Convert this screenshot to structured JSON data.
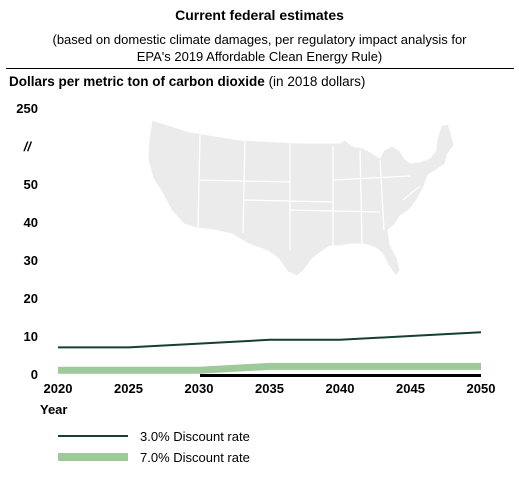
{
  "chart_data": {
    "type": "line",
    "title": "Current federal estimates",
    "subtitle_line1": "(based on domestic climate damages, per regulatory impact analysis for",
    "subtitle_line2": "EPA's 2019 Affordable Clean Energy Rule)",
    "ylabel_bold": "Dollars per metric ton of carbon dioxide",
    "ylabel_note": "(in 2018 dollars)",
    "xlabel": "Year",
    "x": [
      2020,
      2025,
      2030,
      2035,
      2040,
      2045,
      2050
    ],
    "x_tick_labels": [
      "2020",
      "2025",
      "2030",
      "2035",
      "2040",
      "2045",
      "2050"
    ],
    "y_tick_labels": [
      "0",
      "10",
      "20",
      "30",
      "40",
      "50",
      "//",
      "250"
    ],
    "y_ticks_numeric": [
      0,
      10,
      20,
      30,
      40,
      50
    ],
    "y_break_symbol": "//",
    "y_top_label": "250",
    "ylim": [
      0,
      50
    ],
    "series": [
      {
        "name": "3.0% Discount rate",
        "color": "#13412c",
        "style": "thin",
        "values": [
          7,
          7,
          8,
          9,
          9,
          10,
          11
        ]
      },
      {
        "name": "7.0% Discount rate",
        "color": "#9ec99a",
        "style": "thick",
        "values": [
          1,
          1,
          1,
          2,
          2,
          2,
          2
        ]
      }
    ],
    "background_image": "us-map-silhouette",
    "grid": false,
    "legend_position": "bottom-left"
  },
  "colors": {
    "map_fill": "#ebebeb",
    "map_border": "#ffffff",
    "rule": "#000000"
  }
}
